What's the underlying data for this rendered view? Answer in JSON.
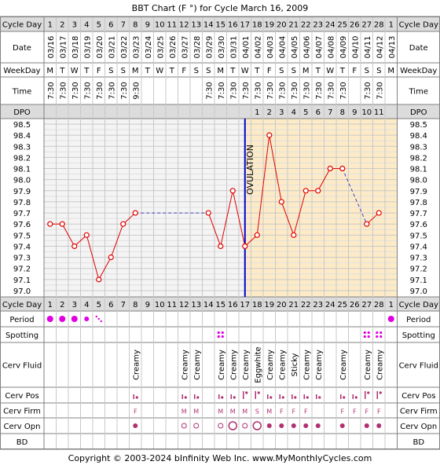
{
  "title": "BBT Chart (F °) for Cycle March 16, 2009",
  "copyright": "Copyright © 2003-2024 bInfinity Web Inc.     www.MyMonthlyCycles.com",
  "row_labels": {
    "cycle_day": "Cycle Day",
    "date": "Date",
    "weekday": "WeekDay",
    "time": "Time",
    "dpo": "DPO",
    "period": "Period",
    "spotting": "Spotting",
    "cerv_fluid": "Cerv Fluid",
    "cerv_pos": "Cerv Pos",
    "cerv_firm": "Cerv Firm",
    "cerv_opn": "Cerv Opn",
    "bd": "BD"
  },
  "ovulation_label": "OVULATION",
  "colors": {
    "line": "#e00000",
    "point": "#e00000",
    "ovulation": "#0000cc",
    "postov_bg": "#fdebc8",
    "grid": "#c8c8c8",
    "header_bg": "#dcdcdc",
    "period": "#e000e0",
    "spotting": "#e000e0",
    "marker": "#b03070"
  },
  "chart_data": {
    "type": "line",
    "title": "BBT Chart (F °) for Cycle March 16, 2009",
    "ylabel": "",
    "ylim": [
      97.0,
      98.5
    ],
    "ticks": [
      "98.5",
      "98.4",
      "98.3",
      "98.2",
      "98.1",
      "98.0",
      "97.9",
      "97.8",
      "97.7",
      "97.6",
      "97.5",
      "97.4",
      "97.3",
      "97.2",
      "97.1",
      "97.0"
    ],
    "cycle_days": [
      1,
      2,
      3,
      4,
      5,
      6,
      7,
      8,
      9,
      10,
      11,
      12,
      13,
      14,
      15,
      16,
      17,
      18,
      19,
      20,
      21,
      22,
      23,
      24,
      25,
      26,
      27,
      28,
      1
    ],
    "dates": [
      "03/16",
      "03/17",
      "03/18",
      "03/19",
      "03/20",
      "03/21",
      "03/22",
      "03/23",
      "03/24",
      "03/25",
      "03/26",
      "03/27",
      "03/28",
      "03/29",
      "03/30",
      "03/31",
      "04/01",
      "04/02",
      "04/03",
      "04/04",
      "04/05",
      "04/06",
      "04/07",
      "04/08",
      "04/09",
      "04/10",
      "04/11",
      "04/12",
      "04/13"
    ],
    "weekdays": [
      "M",
      "T",
      "W",
      "T",
      "F",
      "S",
      "S",
      "M",
      "T",
      "W",
      "T",
      "F",
      "S",
      "S",
      "M",
      "T",
      "W",
      "T",
      "F",
      "S",
      "S",
      "M",
      "T",
      "W",
      "T",
      "F",
      "S",
      "S",
      "M"
    ],
    "times": [
      "7:30",
      "7:30",
      "7:30",
      "7:30",
      "7:30",
      "7:30",
      "7:30",
      "9:30",
      "",
      "",
      "",
      "",
      "",
      "7:30",
      "7:30",
      "7:30",
      "7:30",
      "7:30",
      "7:30",
      "7:30",
      "7:30",
      "7:30",
      "7:30",
      "7:30",
      "7:30",
      "",
      "7:30",
      "7:30",
      ""
    ],
    "dpo": [
      "",
      "",
      "",
      "",
      "",
      "",
      "",
      "",
      "",
      "",
      "",
      "",
      "",
      "",
      "",
      "",
      "",
      "1",
      "2",
      "3",
      "4",
      "5",
      "6",
      "7",
      "8",
      "9",
      "10",
      "11",
      ""
    ],
    "temps": [
      97.6,
      97.6,
      97.4,
      97.5,
      97.1,
      97.3,
      97.6,
      97.7,
      null,
      null,
      null,
      null,
      null,
      97.7,
      97.4,
      97.9,
      97.4,
      97.5,
      98.4,
      97.8,
      97.5,
      97.9,
      97.9,
      98.1,
      98.1,
      null,
      97.6,
      97.7,
      null
    ],
    "ovulation_day": 17,
    "period": [
      "heavy",
      "heavy",
      "heavy",
      "medium",
      "light",
      "",
      "",
      "",
      "",
      "",
      "",
      "",
      "",
      "",
      "",
      "",
      "",
      "",
      "",
      "",
      "",
      "",
      "",
      "",
      "",
      "",
      "",
      "",
      "heavy"
    ],
    "spotting": [
      "",
      "",
      "",
      "",
      "",
      "",
      "",
      "",
      "",
      "",
      "",
      "",
      "",
      "",
      "yes",
      "",
      "",
      "",
      "",
      "",
      "",
      "",
      "",
      "",
      "",
      "",
      "yes",
      "yes",
      ""
    ],
    "cerv_fluid": [
      "",
      "",
      "",
      "",
      "",
      "",
      "",
      "Creamy",
      "",
      "",
      "",
      "Creamy",
      "Creamy",
      "",
      "Creamy",
      "Creamy",
      "Creamy",
      "Eggwhite",
      "Creamy",
      "Creamy",
      "Sticky",
      "Creamy",
      "Creamy",
      "",
      "Creamy",
      "",
      "Creamy",
      "Creamy",
      ""
    ],
    "cerv_pos": [
      "",
      "",
      "",
      "",
      "",
      "",
      "",
      "low",
      "",
      "",
      "",
      "low",
      "low",
      "",
      "low",
      "low",
      "mid",
      "mid",
      "low",
      "low",
      "low",
      "low",
      "low",
      "",
      "low",
      "low",
      "mid",
      "mid",
      ""
    ],
    "cerv_firm": [
      "",
      "",
      "",
      "",
      "",
      "",
      "",
      "F",
      "",
      "",
      "",
      "M",
      "M",
      "",
      "M",
      "M",
      "M",
      "S",
      "M",
      "F",
      "F",
      "F",
      "",
      "",
      "F",
      "F",
      "F",
      "F",
      ""
    ],
    "cerv_opn": [
      "",
      "",
      "",
      "",
      "",
      "",
      "",
      "closed",
      "",
      "",
      "",
      "open",
      "open",
      "",
      "open",
      "wide",
      "open",
      "wide",
      "closed",
      "closed",
      "closed",
      "closed",
      "closed",
      "",
      "closed",
      "",
      "closed",
      "closed",
      ""
    ]
  }
}
